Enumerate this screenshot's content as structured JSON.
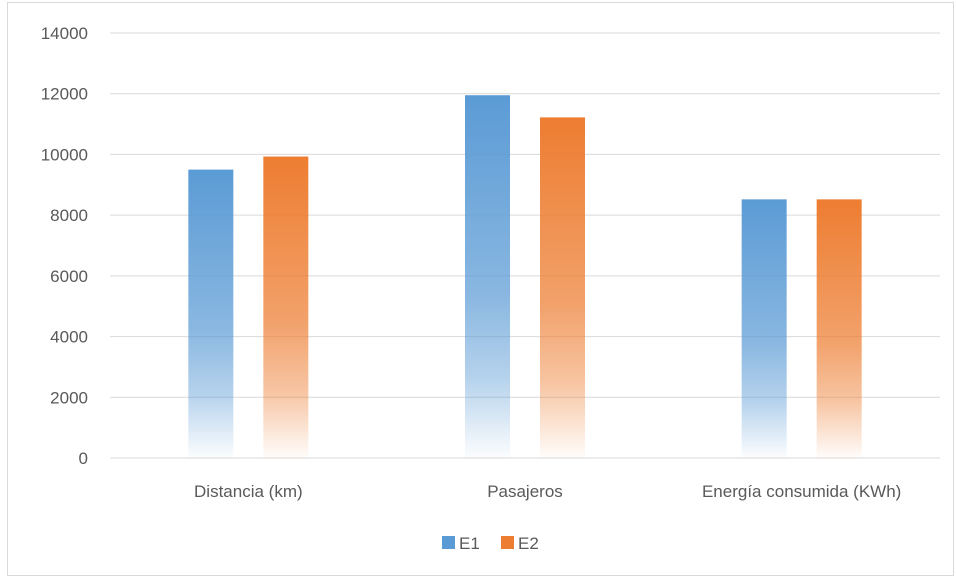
{
  "chart_data": {
    "type": "bar",
    "title": "",
    "xlabel": "",
    "ylabel": "",
    "categories": [
      "Distancia (km)",
      "Pasajeros",
      "Energía consumida (KWh)"
    ],
    "series": [
      {
        "name": "E1",
        "values": [
          9500,
          11950,
          8520
        ],
        "color": "#5b9bd5"
      },
      {
        "name": "E2",
        "values": [
          9930,
          11220,
          8520
        ],
        "color": "#ed7d31"
      }
    ],
    "ylim": [
      0,
      14000
    ],
    "yticks": [
      0,
      2000,
      4000,
      6000,
      8000,
      10000,
      12000,
      14000
    ],
    "grid": true,
    "legend_position": "bottom",
    "fill_style": "vertical gradient fading to white at base"
  }
}
